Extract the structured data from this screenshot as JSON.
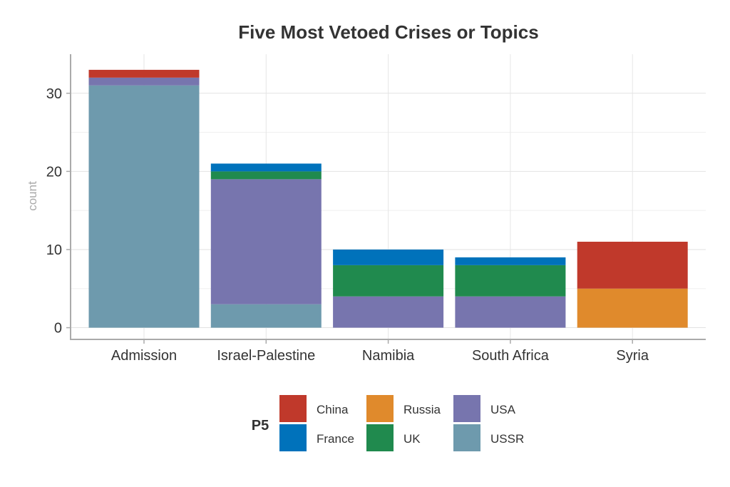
{
  "chart_data": {
    "type": "bar",
    "stacked": true,
    "title": "Five Most Vetoed Crises or Topics",
    "xlabel": "",
    "ylabel": "count",
    "ylim": [
      -1.5,
      35
    ],
    "yticks": [
      0,
      10,
      20,
      30
    ],
    "grid": true,
    "categories": [
      "Admission",
      "Israel-Palestine",
      "Namibia",
      "South Africa",
      "Syria"
    ],
    "stack_order": [
      "USSR",
      "USA",
      "UK",
      "Russia",
      "France",
      "China"
    ],
    "series": [
      {
        "name": "China",
        "color": "#c0392b",
        "values": [
          1,
          0,
          0,
          0,
          6
        ]
      },
      {
        "name": "France",
        "color": "#0072bb",
        "values": [
          0,
          1,
          2,
          1,
          0
        ]
      },
      {
        "name": "Russia",
        "color": "#e08a2c",
        "values": [
          0,
          0,
          0,
          0,
          5
        ]
      },
      {
        "name": "UK",
        "color": "#208a4e",
        "values": [
          0,
          1,
          4,
          4,
          0
        ]
      },
      {
        "name": "USA",
        "color": "#7775ae",
        "values": [
          1,
          16,
          4,
          4,
          0
        ]
      },
      {
        "name": "USSR",
        "color": "#6e9aad",
        "values": [
          31,
          3,
          0,
          0,
          0
        ]
      }
    ],
    "legend": {
      "title": "P5",
      "position": "bottom",
      "items": [
        "China",
        "France",
        "Russia",
        "UK",
        "USA",
        "USSR"
      ]
    }
  }
}
